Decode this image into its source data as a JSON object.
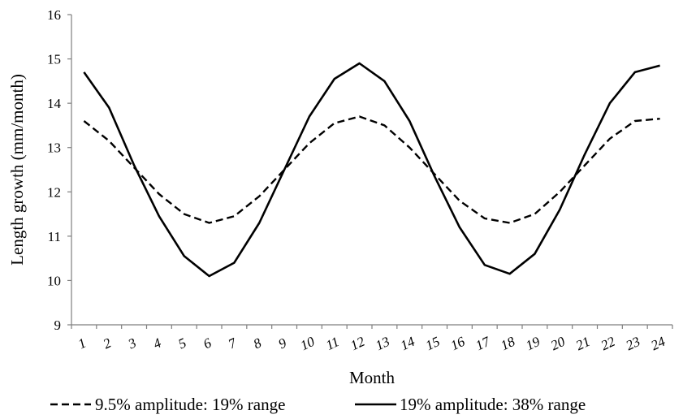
{
  "chart_data": {
    "type": "line",
    "title": "",
    "xlabel": "Month",
    "ylabel": "Length growth (mm/month)",
    "ylim": [
      9,
      16
    ],
    "yticks": [
      "9",
      "10",
      "11",
      "12",
      "13",
      "14",
      "15",
      "16"
    ],
    "categories": [
      "1",
      "2",
      "3",
      "4",
      "5",
      "6",
      "7",
      "8",
      "9",
      "10",
      "11",
      "12",
      "13",
      "14",
      "15",
      "16",
      "17",
      "18",
      "19",
      "20",
      "21",
      "22",
      "23",
      "24"
    ],
    "grid": false,
    "legend_position": "bottom",
    "series": [
      {
        "name": "9.5% amplitude: 19% range",
        "style": "dashed",
        "color": "#000000",
        "values": [
          13.6,
          13.15,
          12.55,
          11.95,
          11.5,
          11.3,
          11.45,
          11.9,
          12.5,
          13.1,
          13.55,
          13.7,
          13.5,
          13.0,
          12.4,
          11.8,
          11.4,
          11.3,
          11.5,
          12.0,
          12.6,
          13.2,
          13.6,
          13.65
        ]
      },
      {
        "name": "19% amplitude: 38% range",
        "style": "solid",
        "color": "#000000",
        "values": [
          14.7,
          13.9,
          12.6,
          11.45,
          10.55,
          10.1,
          10.4,
          11.3,
          12.5,
          13.7,
          14.55,
          14.9,
          14.5,
          13.6,
          12.35,
          11.2,
          10.35,
          10.15,
          10.6,
          11.6,
          12.85,
          14.0,
          14.7,
          14.85
        ]
      }
    ]
  }
}
